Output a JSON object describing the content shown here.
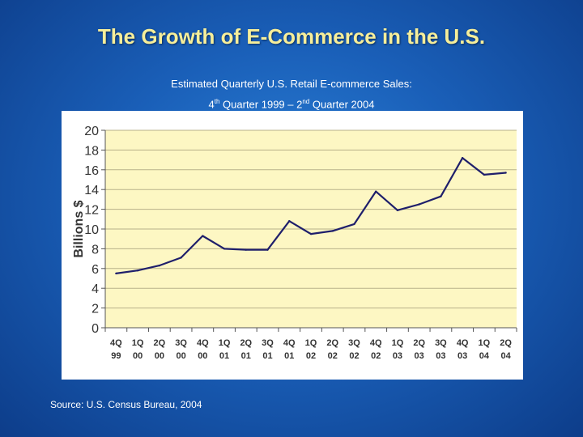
{
  "slide": {
    "title": "The Growth of E-Commerce in the U.S.",
    "subtitle_line1": "Estimated Quarterly U.S. Retail E-commerce Sales:",
    "subtitle_line2_a": "4",
    "subtitle_line2_sup_a": "th",
    "subtitle_line2_b": " Quarter 1999 – 2",
    "subtitle_line2_sup_b": "nd",
    "subtitle_line2_c": "  Quarter 2004",
    "source": "Source:  U.S. Census Bureau, 2004"
  },
  "colors": {
    "plot_background": "#fdf7c3",
    "line": "#1f1f6b",
    "gridline": "#b8b28a",
    "title_text": "#f6ee9a"
  },
  "chart_data": {
    "type": "line",
    "title": "",
    "xlabel": "",
    "ylabel": "Billions $",
    "ylim": [
      0,
      20
    ],
    "yticks": [
      0,
      2,
      4,
      6,
      8,
      10,
      12,
      14,
      16,
      18,
      20
    ],
    "grid": true,
    "legend": "none",
    "categories": [
      [
        "4Q",
        "99"
      ],
      [
        "1Q",
        "00"
      ],
      [
        "2Q",
        "00"
      ],
      [
        "3Q",
        "00"
      ],
      [
        "4Q",
        "00"
      ],
      [
        "1Q",
        "01"
      ],
      [
        "2Q",
        "01"
      ],
      [
        "3Q",
        "01"
      ],
      [
        "4Q",
        "01"
      ],
      [
        "1Q",
        "02"
      ],
      [
        "2Q",
        "02"
      ],
      [
        "3Q",
        "02"
      ],
      [
        "4Q",
        "02"
      ],
      [
        "1Q",
        "03"
      ],
      [
        "2Q",
        "03"
      ],
      [
        "3Q",
        "03"
      ],
      [
        "4Q",
        "03"
      ],
      [
        "1Q",
        "04"
      ],
      [
        "2Q",
        "04"
      ]
    ],
    "series": [
      {
        "values": [
          5.5,
          5.8,
          6.3,
          7.1,
          9.3,
          8.0,
          7.9,
          7.9,
          10.8,
          9.5,
          9.8,
          10.5,
          13.8,
          11.9,
          12.5,
          13.3,
          17.2,
          15.5,
          15.7
        ]
      }
    ]
  }
}
